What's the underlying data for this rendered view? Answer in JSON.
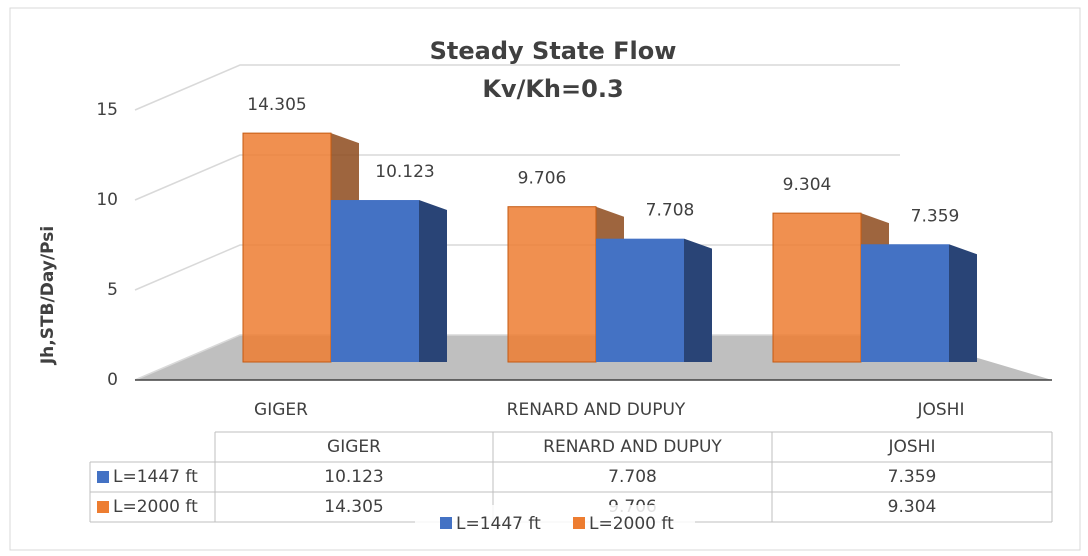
{
  "chart_data": {
    "type": "bar",
    "title": "Steady State Flow",
    "subtitle": "Kv/Kh=0.3",
    "y_label": "Jh,STB/Day/Psi",
    "categories": [
      "GIGER",
      "RENARD AND DUPUY",
      "JOSHI"
    ],
    "series": [
      {
        "name": "L=1447 ft",
        "color": "#4472c4",
        "values": [
          10.123,
          7.708,
          7.359
        ]
      },
      {
        "name": "L=2000 ft",
        "color": "#ed7d31",
        "values": [
          14.305,
          9.706,
          9.304
        ]
      }
    ],
    "ylim": [
      0,
      15
    ],
    "yticks": [
      0,
      5,
      10,
      15
    ],
    "grid": true
  }
}
